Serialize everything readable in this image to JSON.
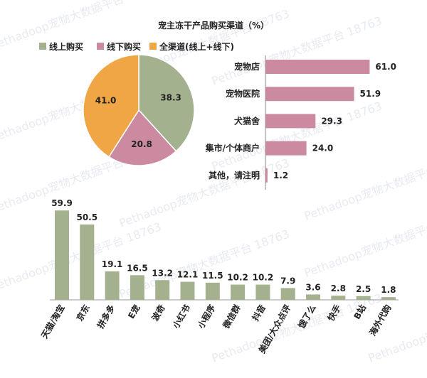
{
  "title": "宠主冻干产品购买渠道（%）",
  "watermark": "Pethadoop宠物大数据平台 18763",
  "colors": {
    "online": "#a3b18f",
    "offline": "#cc8aa0",
    "all": "#f0a645",
    "bar_dark": "#a3b18f",
    "axis": "#333333",
    "text": "#222222"
  },
  "chart_data": [
    {
      "type": "pie",
      "title": "宠主冻干产品购买渠道（%）",
      "legend_position": "top",
      "slices": [
        {
          "label": "线上购买",
          "value": 38.3,
          "color": "#a3b18f"
        },
        {
          "label": "线下购买",
          "value": 20.8,
          "color": "#cc8aa0"
        },
        {
          "label": "全渠道(线上+线下)",
          "value": 41.0,
          "color": "#f0a645"
        }
      ]
    },
    {
      "type": "bar",
      "orientation": "horizontal",
      "series_name": "线下购买",
      "color": "#cc8aa0",
      "categories": [
        "宠物店",
        "宠物医院",
        "犬猫舍",
        "集市/个体商户",
        "其他，请注明"
      ],
      "values": [
        61.0,
        51.9,
        29.3,
        24.0,
        1.2
      ]
    },
    {
      "type": "bar",
      "orientation": "vertical",
      "series_name": "线上购买",
      "color": "#a3b18f",
      "categories": [
        "天猫/淘宝",
        "京东",
        "拼多多",
        "E宠",
        "波奇",
        "小红书",
        "小程序",
        "微信群",
        "抖音",
        "美团/大众点评",
        "饿了么",
        "快手",
        "B站",
        "海外代购"
      ],
      "values": [
        59.9,
        50.5,
        19.1,
        16.5,
        13.2,
        12.1,
        11.5,
        10.2,
        10.2,
        7.9,
        3.6,
        2.8,
        2.5,
        1.8
      ]
    }
  ]
}
